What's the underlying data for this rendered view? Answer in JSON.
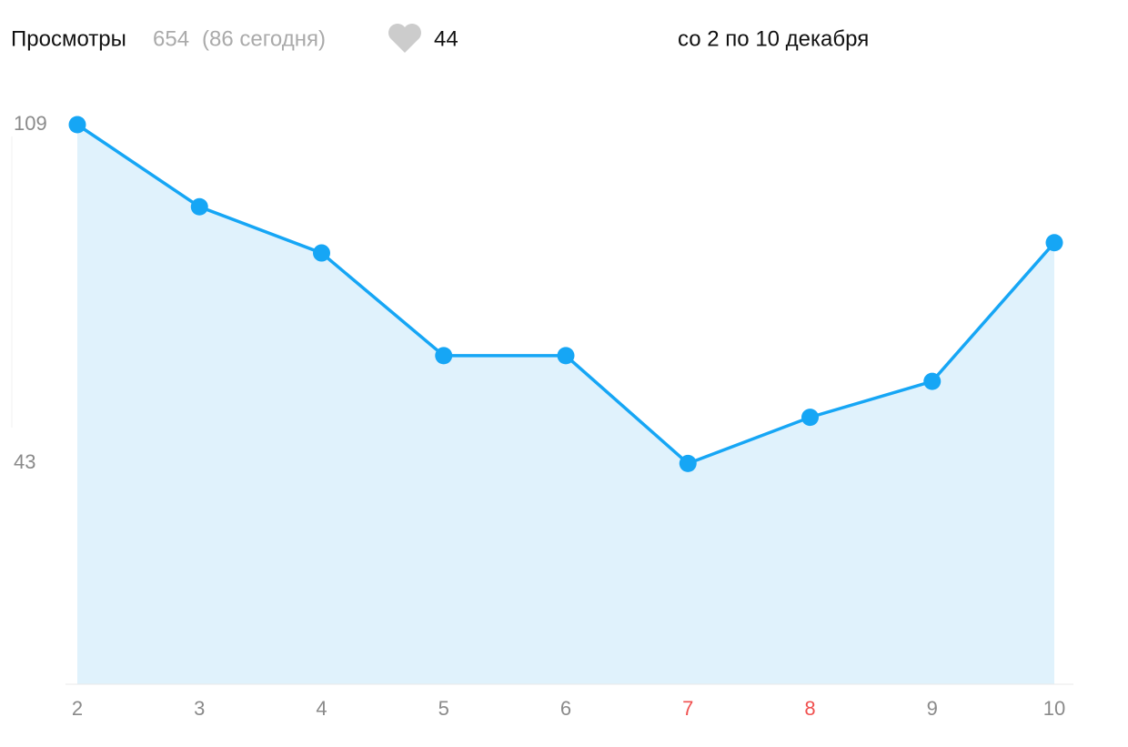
{
  "header": {
    "label": "Просмотры",
    "total": 654,
    "today": "(86 сегодня)",
    "likes": 44,
    "period": "со 2 по 10 декабря"
  },
  "chart_data": {
    "type": "line",
    "categories": [
      "2",
      "3",
      "4",
      "5",
      "6",
      "7",
      "8",
      "9",
      "10"
    ],
    "category_colors": [
      "#8a8a8a",
      "#8a8a8a",
      "#8a8a8a",
      "#8a8a8a",
      "#8a8a8a",
      "#f0504f",
      "#f0504f",
      "#8a8a8a",
      "#8a8a8a"
    ],
    "values": [
      109,
      93,
      84,
      64,
      64,
      43,
      52,
      59,
      86
    ],
    "color": "#16a6f5",
    "fill": "#e0f2fc",
    "ylim": [
      0,
      109
    ],
    "yticks": [
      43,
      109
    ]
  }
}
